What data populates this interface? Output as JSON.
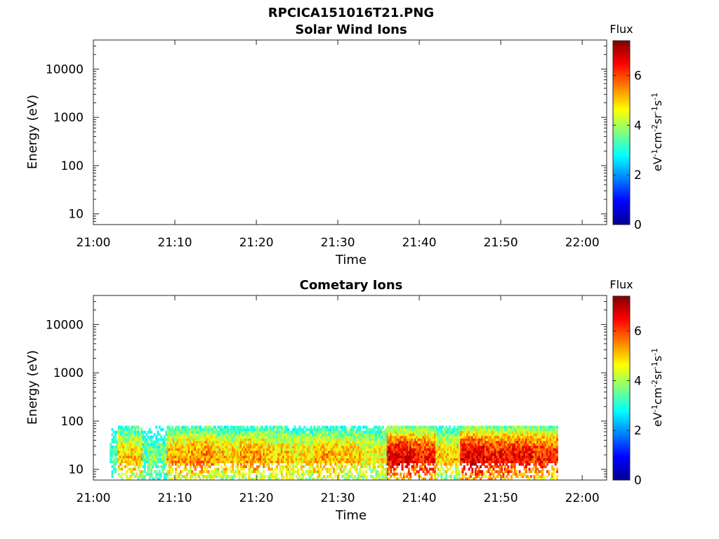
{
  "figure": {
    "title": "RPCICA151016T21.PNG"
  },
  "chart_data": [
    {
      "type": "heatmap",
      "title": "Solar Wind Ions",
      "xlabel": "Time",
      "ylabel": "Energy (eV)",
      "x_ticks": [
        "21:00",
        "21:10",
        "21:20",
        "21:30",
        "21:40",
        "21:50",
        "22:00"
      ],
      "xlim": [
        "21:00",
        "22:03"
      ],
      "y_scale": "log",
      "y_ticks": [
        "10",
        "100",
        "1000",
        "10000"
      ],
      "ylim": [
        6,
        40000
      ],
      "colorbar": {
        "title": "Flux",
        "label": "eV-1cm-2sr-1s-1",
        "ticks": [
          "0",
          "2",
          "4",
          "6"
        ],
        "range": [
          0,
          7.4
        ],
        "colormap": "jet"
      },
      "intervals": []
    },
    {
      "type": "heatmap",
      "title": "Cometary Ions",
      "xlabel": "Time",
      "ylabel": "Energy (eV)",
      "x_ticks": [
        "21:00",
        "21:10",
        "21:20",
        "21:30",
        "21:40",
        "21:50",
        "22:00"
      ],
      "xlim": [
        "21:00",
        "22:03"
      ],
      "y_scale": "log",
      "y_ticks": [
        "10",
        "100",
        "1000",
        "10000"
      ],
      "ylim": [
        6,
        40000
      ],
      "colorbar": {
        "title": "Flux",
        "label": "eV-1cm-2sr-1s-1",
        "ticks": [
          "0",
          "2",
          "4",
          "6"
        ],
        "range": [
          0,
          7.4
        ],
        "colormap": "jet"
      },
      "coverage": {
        "time_start": "21:02",
        "time_end": "21:57",
        "energy_min": 6,
        "energy_max": 80
      },
      "intervals": [
        {
          "start": "21:02",
          "end": "21:03",
          "flux": 3.2
        },
        {
          "start": "21:03",
          "end": "21:06",
          "flux": 5.0
        },
        {
          "start": "21:06",
          "end": "21:09",
          "flux": 3.6
        },
        {
          "start": "21:09",
          "end": "21:12",
          "flux": 5.3
        },
        {
          "start": "21:12",
          "end": "21:15",
          "flux": 5.5
        },
        {
          "start": "21:15",
          "end": "21:18",
          "flux": 5.0
        },
        {
          "start": "21:18",
          "end": "21:21",
          "flux": 5.4
        },
        {
          "start": "21:21",
          "end": "21:24",
          "flux": 5.1
        },
        {
          "start": "21:24",
          "end": "21:27",
          "flux": 4.8
        },
        {
          "start": "21:27",
          "end": "21:30",
          "flux": 5.3
        },
        {
          "start": "21:30",
          "end": "21:33",
          "flux": 5.0
        },
        {
          "start": "21:33",
          "end": "21:36",
          "flux": 4.6
        },
        {
          "start": "21:36",
          "end": "21:39",
          "flux": 6.6
        },
        {
          "start": "21:39",
          "end": "21:42",
          "flux": 6.3
        },
        {
          "start": "21:42",
          "end": "21:45",
          "flux": 5.0
        },
        {
          "start": "21:45",
          "end": "21:48",
          "flux": 6.7
        },
        {
          "start": "21:48",
          "end": "21:51",
          "flux": 6.4
        },
        {
          "start": "21:51",
          "end": "21:54",
          "flux": 6.5
        },
        {
          "start": "21:54",
          "end": "21:57",
          "flux": 6.2
        }
      ]
    }
  ]
}
